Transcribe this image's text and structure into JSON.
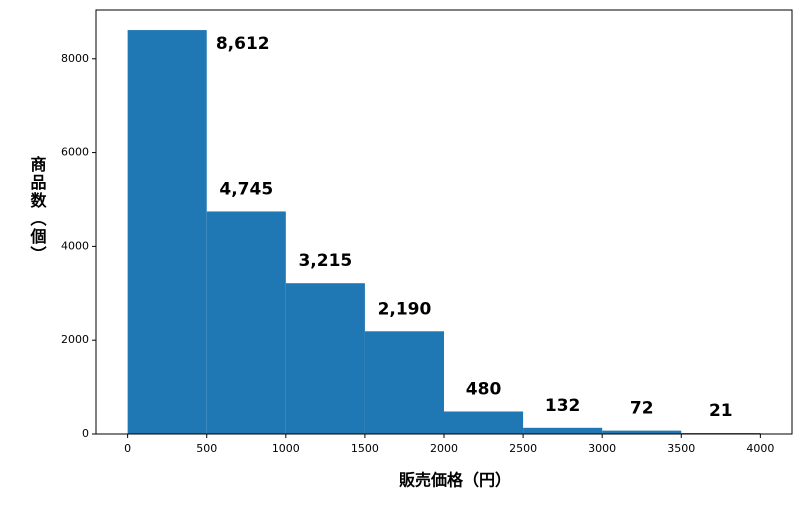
{
  "chart_data": {
    "type": "histogram",
    "xlabel": "販売価格（円）",
    "ylabel": "商品数（個）",
    "bins": [
      0,
      500,
      1000,
      1500,
      2000,
      2500,
      3000,
      3500,
      4000
    ],
    "values": [
      8612,
      4745,
      3215,
      2190,
      480,
      132,
      72,
      21
    ],
    "value_labels": [
      "8,612",
      "4,745",
      "3,215",
      "2,190",
      "480",
      "132",
      "72",
      "21"
    ],
    "color": "#1f77b4",
    "xlim": [
      -200,
      4200
    ],
    "xticks": [
      0,
      500,
      1000,
      1500,
      2000,
      2500,
      3000,
      3500,
      4000
    ],
    "ylim": [
      0,
      9040
    ],
    "yticks": [
      0,
      2000,
      4000,
      6000,
      8000
    ]
  }
}
